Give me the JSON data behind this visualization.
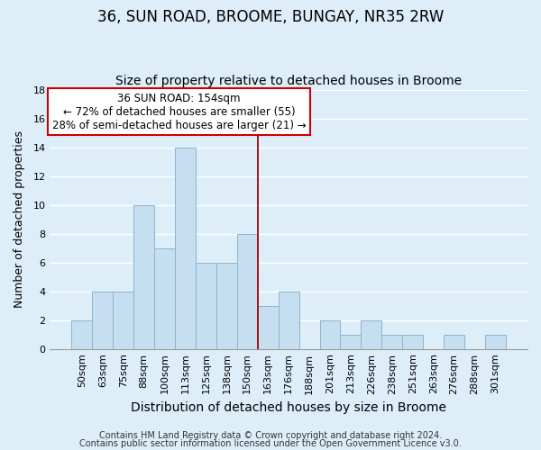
{
  "title": "36, SUN ROAD, BROOME, BUNGAY, NR35 2RW",
  "subtitle": "Size of property relative to detached houses in Broome",
  "xlabel": "Distribution of detached houses by size in Broome",
  "ylabel": "Number of detached properties",
  "bar_labels": [
    "50sqm",
    "63sqm",
    "75sqm",
    "88sqm",
    "100sqm",
    "113sqm",
    "125sqm",
    "138sqm",
    "150sqm",
    "163sqm",
    "176sqm",
    "188sqm",
    "201sqm",
    "213sqm",
    "226sqm",
    "238sqm",
    "251sqm",
    "263sqm",
    "276sqm",
    "288sqm",
    "301sqm"
  ],
  "bar_heights": [
    2,
    4,
    4,
    10,
    7,
    14,
    6,
    6,
    8,
    3,
    4,
    0,
    2,
    1,
    2,
    1,
    1,
    0,
    1,
    0,
    1
  ],
  "bar_color": "#c5dff0",
  "bar_edge_color": "#8ab4d4",
  "background_color": "#ddeef8",
  "grid_color": "#ffffff",
  "ylim": [
    0,
    18
  ],
  "yticks": [
    0,
    2,
    4,
    6,
    8,
    10,
    12,
    14,
    16,
    18
  ],
  "property_line_x": 8.5,
  "property_line_color": "#aa0000",
  "annotation_text": "36 SUN ROAD: 154sqm\n← 72% of detached houses are smaller (55)\n28% of semi-detached houses are larger (21) →",
  "annotation_box_color": "#ffffff",
  "annotation_box_edge": "#cc0000",
  "footer_line1": "Contains HM Land Registry data © Crown copyright and database right 2024.",
  "footer_line2": "Contains public sector information licensed under the Open Government Licence v3.0.",
  "title_fontsize": 12,
  "subtitle_fontsize": 10,
  "xlabel_fontsize": 10,
  "ylabel_fontsize": 9,
  "tick_fontsize": 8,
  "footer_fontsize": 7
}
